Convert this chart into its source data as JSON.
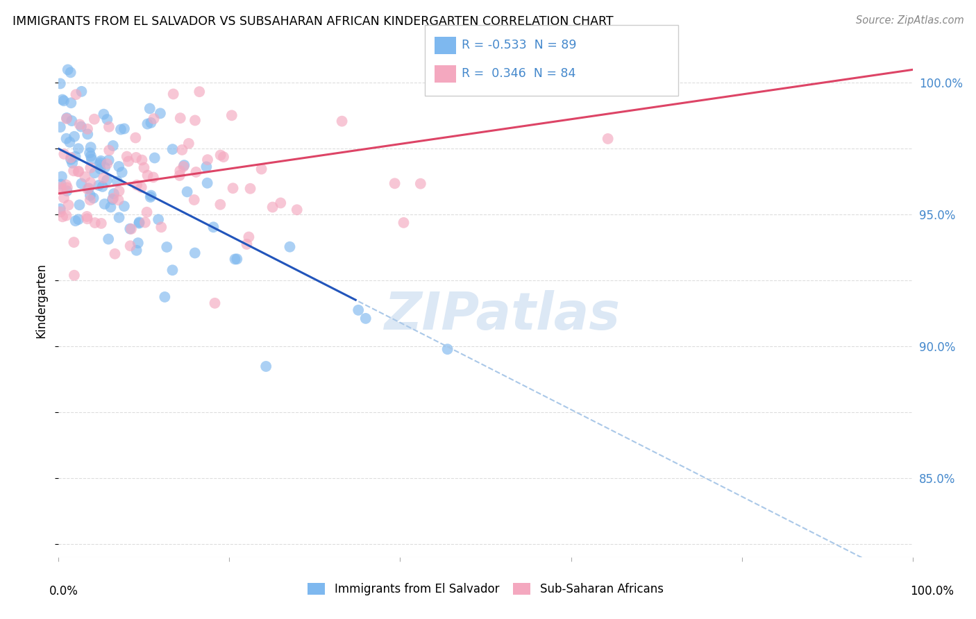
{
  "title": "IMMIGRANTS FROM EL SALVADOR VS SUBSAHARAN AFRICAN KINDERGARTEN CORRELATION CHART",
  "source_text": "Source: ZipAtlas.com",
  "ylabel": "Kindergarten",
  "legend_entry1_label": "Immigrants from El Salvador",
  "legend_entry2_label": "Sub-Saharan Africans",
  "blue_R": -0.533,
  "blue_N": 89,
  "pink_R": 0.346,
  "pink_N": 84,
  "blue_color": "#7eb8ef",
  "pink_color": "#f4a8bf",
  "blue_line_color": "#2255bb",
  "pink_line_color": "#dd4466",
  "dashed_line_color": "#aac8e8",
  "watermark_color": "#dce8f5",
  "background_color": "#ffffff",
  "grid_color": "#dddddd",
  "right_label_color": "#4488cc",
  "ylim_min": 82.0,
  "ylim_max": 101.5,
  "xlim_min": 0.0,
  "xlim_max": 100.0,
  "blue_trend_start_x": 0.0,
  "blue_trend_start_y": 97.5,
  "blue_trend_end_x": 100.0,
  "blue_trend_end_y": 81.0,
  "blue_solid_end_x": 35.0,
  "pink_trend_start_x": 0.0,
  "pink_trend_start_y": 95.8,
  "pink_trend_end_x": 100.0,
  "pink_trend_end_y": 100.5
}
